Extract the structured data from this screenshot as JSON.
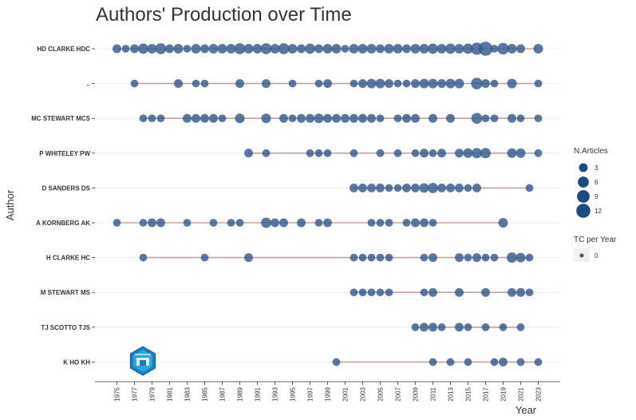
{
  "chart_data": {
    "type": "scatter",
    "title": "Authors' Production over Time",
    "xlabel": "Year",
    "ylabel": "Author",
    "x_ticks": [
      "1975",
      "1977",
      "1979",
      "1981",
      "1983",
      "1985",
      "1987",
      "1989",
      "1991",
      "1993",
      "1995",
      "1997",
      "1999",
      "2001",
      "2003",
      "2005",
      "2007",
      "2009",
      "2011",
      "2013",
      "2015",
      "2017",
      "2019",
      "2021",
      "2023"
    ],
    "xlim": [
      1972.5,
      2025.5
    ],
    "authors": [
      "HD CLARKE HDC",
      "..",
      "MC STEWART MCS",
      "P WHITELEY PW",
      "D SANDERS DS",
      "A KORNBERG AK",
      "H CLARKE HC",
      "M STEWART MS",
      "TJ SCOTTO TJS",
      "K HO KH"
    ],
    "size_legend": {
      "title": "N.Articles",
      "values": [
        "3",
        "6",
        "9",
        "12"
      ]
    },
    "color_legend": {
      "title": "TC per Year",
      "values": [
        "0"
      ]
    },
    "colors": {
      "point": "#355a8c",
      "line": "#c8a0a0",
      "legend_point": "#1d4a80",
      "grid": "#eeeeee"
    },
    "series": [
      {
        "author": "HD CLARKE HDC",
        "range": [
          1975,
          2023
        ],
        "points": [
          [
            1975,
            3
          ],
          [
            1976,
            2
          ],
          [
            1977,
            3
          ],
          [
            1978,
            5
          ],
          [
            1979,
            4
          ],
          [
            1980,
            6
          ],
          [
            1981,
            3
          ],
          [
            1982,
            4
          ],
          [
            1983,
            2
          ],
          [
            1984,
            4
          ],
          [
            1985,
            3
          ],
          [
            1986,
            4
          ],
          [
            1987,
            4
          ],
          [
            1988,
            4
          ],
          [
            1989,
            6
          ],
          [
            1990,
            4
          ],
          [
            1991,
            4
          ],
          [
            1992,
            6
          ],
          [
            1993,
            4
          ],
          [
            1994,
            6
          ],
          [
            1995,
            4
          ],
          [
            1996,
            3
          ],
          [
            1997,
            5
          ],
          [
            1998,
            3
          ],
          [
            1999,
            4
          ],
          [
            2000,
            4
          ],
          [
            2001,
            2
          ],
          [
            2002,
            4
          ],
          [
            2003,
            4
          ],
          [
            2004,
            4
          ],
          [
            2005,
            3
          ],
          [
            2006,
            4
          ],
          [
            2007,
            4
          ],
          [
            2008,
            3
          ],
          [
            2009,
            4
          ],
          [
            2010,
            4
          ],
          [
            2011,
            5
          ],
          [
            2012,
            4
          ],
          [
            2013,
            5
          ],
          [
            2014,
            4
          ],
          [
            2015,
            5
          ],
          [
            2016,
            8
          ],
          [
            2017,
            12
          ],
          [
            2018,
            2
          ],
          [
            2019,
            7
          ],
          [
            2020,
            4
          ],
          [
            2021,
            3
          ],
          [
            2023,
            4
          ]
        ]
      },
      {
        "author": "..",
        "range": [
          1977,
          2023
        ],
        "points": [
          [
            1977,
            2
          ],
          [
            1982,
            3
          ],
          [
            1984,
            2
          ],
          [
            1985,
            2
          ],
          [
            1989,
            3
          ],
          [
            1992,
            3
          ],
          [
            1995,
            2
          ],
          [
            1998,
            2
          ],
          [
            1999,
            3
          ],
          [
            2002,
            2
          ],
          [
            2003,
            3
          ],
          [
            2004,
            4
          ],
          [
            2005,
            4
          ],
          [
            2006,
            3
          ],
          [
            2007,
            2
          ],
          [
            2008,
            2
          ],
          [
            2009,
            3
          ],
          [
            2010,
            4
          ],
          [
            2011,
            4
          ],
          [
            2012,
            3
          ],
          [
            2013,
            4
          ],
          [
            2014,
            4
          ],
          [
            2016,
            7
          ],
          [
            2017,
            3
          ],
          [
            2018,
            2
          ],
          [
            2020,
            4
          ],
          [
            2023,
            2
          ]
        ]
      },
      {
        "author": "MC STEWART MCS",
        "range": [
          1978,
          2023
        ],
        "points": [
          [
            1978,
            2
          ],
          [
            1979,
            2
          ],
          [
            1980,
            2
          ],
          [
            1983,
            3
          ],
          [
            1984,
            3
          ],
          [
            1985,
            3
          ],
          [
            1986,
            3
          ],
          [
            1987,
            2
          ],
          [
            1989,
            4
          ],
          [
            1992,
            4
          ],
          [
            1994,
            3
          ],
          [
            1995,
            2
          ],
          [
            1996,
            3
          ],
          [
            1997,
            3
          ],
          [
            1998,
            4
          ],
          [
            1999,
            3
          ],
          [
            2000,
            3
          ],
          [
            2001,
            3
          ],
          [
            2002,
            3
          ],
          [
            2003,
            3
          ],
          [
            2004,
            3
          ],
          [
            2005,
            2
          ],
          [
            2007,
            2
          ],
          [
            2008,
            3
          ],
          [
            2009,
            3
          ],
          [
            2011,
            3
          ],
          [
            2013,
            3
          ],
          [
            2016,
            6
          ],
          [
            2017,
            2
          ],
          [
            2018,
            2
          ],
          [
            2020,
            3
          ],
          [
            2021,
            2
          ],
          [
            2023,
            2
          ]
        ]
      },
      {
        "author": "P WHITELEY PW",
        "range": [
          1990,
          2023
        ],
        "points": [
          [
            1990,
            3
          ],
          [
            1992,
            2
          ],
          [
            1997,
            2
          ],
          [
            1998,
            2
          ],
          [
            1999,
            2
          ],
          [
            2002,
            2
          ],
          [
            2005,
            2
          ],
          [
            2007,
            2
          ],
          [
            2009,
            2
          ],
          [
            2010,
            3
          ],
          [
            2011,
            2
          ],
          [
            2012,
            3
          ],
          [
            2014,
            3
          ],
          [
            2015,
            4
          ],
          [
            2016,
            5
          ],
          [
            2017,
            5
          ],
          [
            2020,
            4
          ],
          [
            2021,
            4
          ],
          [
            2023,
            2
          ]
        ]
      },
      {
        "author": "D SANDERS DS",
        "range": [
          2002,
          2022
        ],
        "points": [
          [
            2002,
            3
          ],
          [
            2003,
            3
          ],
          [
            2004,
            3
          ],
          [
            2005,
            3
          ],
          [
            2006,
            2
          ],
          [
            2007,
            2
          ],
          [
            2008,
            3
          ],
          [
            2009,
            3
          ],
          [
            2010,
            4
          ],
          [
            2011,
            5
          ],
          [
            2012,
            3
          ],
          [
            2013,
            3
          ],
          [
            2014,
            3
          ],
          [
            2015,
            2
          ],
          [
            2016,
            3
          ],
          [
            2022,
            2
          ]
        ]
      },
      {
        "author": "A KORNBERG AK",
        "range": [
          1975,
          2019
        ],
        "points": [
          [
            1975,
            2
          ],
          [
            1978,
            2
          ],
          [
            1979,
            3
          ],
          [
            1980,
            3
          ],
          [
            1983,
            2
          ],
          [
            1986,
            2
          ],
          [
            1988,
            2
          ],
          [
            1989,
            2
          ],
          [
            1992,
            5
          ],
          [
            1993,
            3
          ],
          [
            1994,
            3
          ],
          [
            1996,
            3
          ],
          [
            1998,
            2
          ],
          [
            1999,
            3
          ],
          [
            2004,
            2
          ],
          [
            2005,
            2
          ],
          [
            2006,
            2
          ],
          [
            2008,
            2
          ],
          [
            2009,
            3
          ],
          [
            2010,
            3
          ],
          [
            2011,
            2
          ],
          [
            2019,
            4
          ]
        ]
      },
      {
        "author": "H CLARKE HC",
        "range": [
          1978,
          2022
        ],
        "points": [
          [
            1978,
            2
          ],
          [
            1985,
            2
          ],
          [
            1990,
            3
          ],
          [
            2002,
            2
          ],
          [
            2003,
            2
          ],
          [
            2004,
            2
          ],
          [
            2005,
            2
          ],
          [
            2006,
            2
          ],
          [
            2010,
            2
          ],
          [
            2011,
            3
          ],
          [
            2014,
            3
          ],
          [
            2015,
            2
          ],
          [
            2016,
            3
          ],
          [
            2017,
            2
          ],
          [
            2018,
            2
          ],
          [
            2020,
            5
          ],
          [
            2021,
            4
          ],
          [
            2022,
            2
          ]
        ]
      },
      {
        "author": "M STEWART MS",
        "range": [
          2002,
          2022
        ],
        "points": [
          [
            2002,
            2
          ],
          [
            2003,
            2
          ],
          [
            2004,
            2
          ],
          [
            2005,
            2
          ],
          [
            2006,
            2
          ],
          [
            2010,
            2
          ],
          [
            2011,
            3
          ],
          [
            2014,
            3
          ],
          [
            2017,
            3
          ],
          [
            2020,
            3
          ],
          [
            2021,
            3
          ],
          [
            2022,
            2
          ]
        ]
      },
      {
        "author": "TJ SCOTTO TJS",
        "range": [
          2009,
          2021
        ],
        "points": [
          [
            2009,
            2
          ],
          [
            2010,
            3
          ],
          [
            2011,
            3
          ],
          [
            2012,
            2
          ],
          [
            2014,
            3
          ],
          [
            2015,
            2
          ],
          [
            2017,
            2
          ],
          [
            2019,
            2
          ],
          [
            2021,
            2
          ]
        ]
      },
      {
        "author": "K HO KH",
        "range": [
          2000,
          2023
        ],
        "points": [
          [
            2000,
            2
          ],
          [
            2011,
            2
          ],
          [
            2013,
            2
          ],
          [
            2015,
            2
          ],
          [
            2018,
            2
          ],
          [
            2019,
            3
          ],
          [
            2021,
            2
          ],
          [
            2023,
            2
          ]
        ]
      }
    ]
  }
}
